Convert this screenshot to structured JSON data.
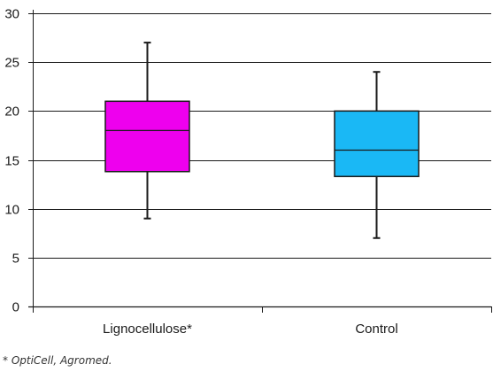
{
  "chart_data": {
    "type": "box",
    "ylim": [
      0,
      30
    ],
    "yticks": [
      0,
      5,
      10,
      15,
      20,
      25,
      30
    ],
    "grid": true,
    "categories": [
      "Lignocellulose*",
      "Control"
    ],
    "boxes": [
      {
        "category": "Lignocellulose*",
        "min": 9,
        "q1": 13.8,
        "median": 18,
        "q3": 21,
        "max": 27,
        "color": "#ee00ee"
      },
      {
        "category": "Control",
        "min": 7,
        "q1": 13.3,
        "median": 16,
        "q3": 20,
        "max": 24,
        "color": "#1ab8f5"
      }
    ]
  },
  "footnote": "* OptiCell, Agromed."
}
